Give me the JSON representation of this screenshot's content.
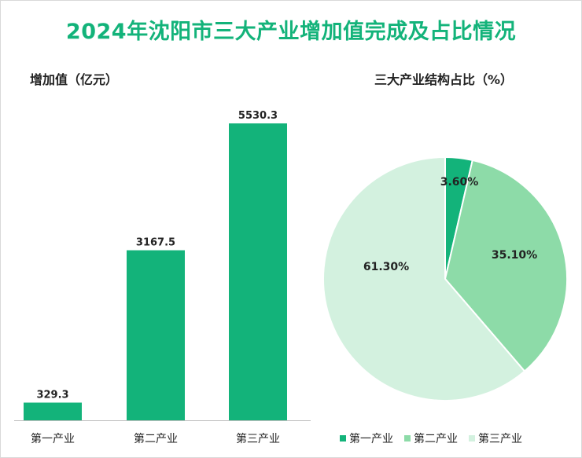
{
  "title": "2024年沈阳市三大产业增加值完成及占比情况",
  "chart_data": [
    {
      "type": "bar",
      "title": "增加值（亿元）",
      "categories": [
        "第一产业",
        "第二产业",
        "第三产业"
      ],
      "values": [
        329.3,
        3167.5,
        5530.3
      ],
      "value_labels": [
        "329.3",
        "3167.5",
        "5530.3"
      ],
      "ylim": [
        0,
        6000
      ],
      "grid": false,
      "color": "#13b37a"
    },
    {
      "type": "pie",
      "title": "三大产业结构占比（%）",
      "categories": [
        "第一产业",
        "第二产业",
        "第三产业"
      ],
      "values": [
        3.6,
        35.1,
        61.3
      ],
      "value_labels": [
        "3.60%",
        "35.10%",
        "61.30%"
      ],
      "colors": [
        "#13b37a",
        "#8ddba8",
        "#d3f1df"
      ],
      "legend": "bottom"
    }
  ]
}
